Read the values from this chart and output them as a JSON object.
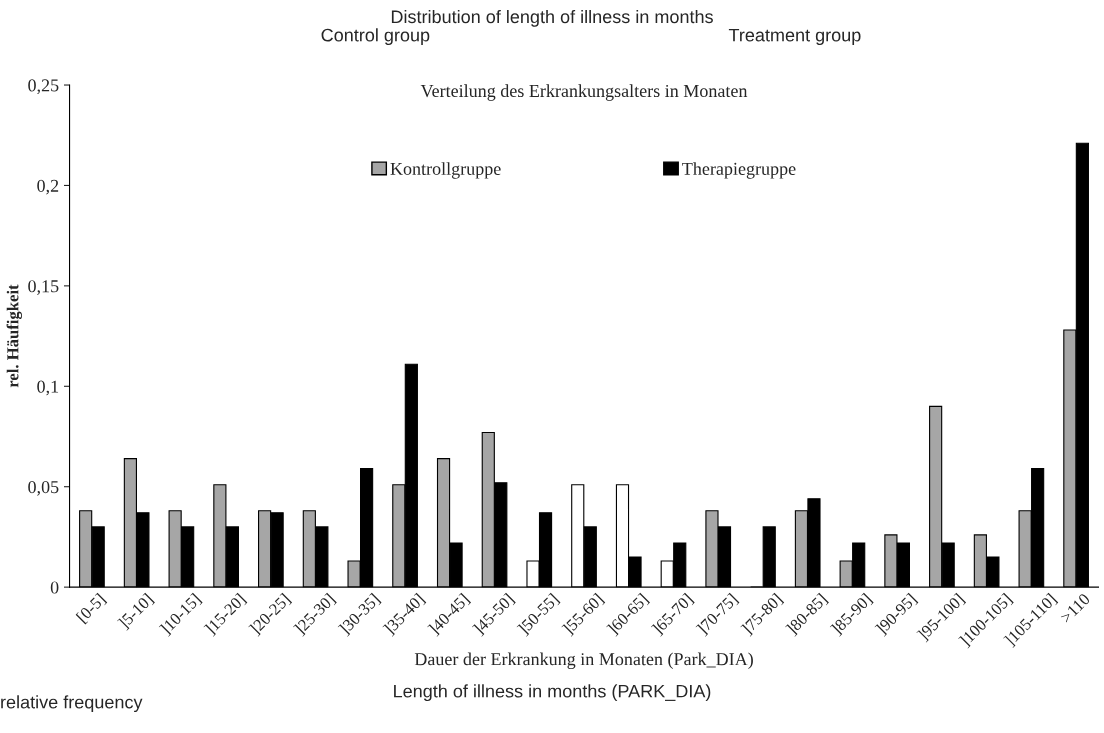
{
  "chart_data": {
    "type": "bar",
    "title": "Distribution of length of illness in months",
    "subtitle": "Verteilung des Erkrankungsalters in Monaten",
    "ylabel": "rel. Häufigkeit",
    "xlabel": "Dauer der Erkrankung in Monaten (Park_DIA)",
    "annotations": [
      "Control group",
      "Treatment group",
      "Length of illness in months (PARK_DIA)",
      "relative frequency"
    ],
    "categories": [
      "[0-5]",
      "]5-10]",
      "]10-15]",
      "]15-20]",
      "]20-25]",
      "]25-30]",
      "]30-35]",
      "]35-40]",
      "]40-45]",
      "]45-50]",
      "]50-55]",
      "]55-60]",
      "]60-65]",
      "]65-70]",
      "]70-75]",
      "]75-80]",
      "]80-85]",
      "]85-90]",
      "]90-95]",
      "]95-100]",
      "]100-105]",
      "]105-110]",
      ">110"
    ],
    "series": [
      {
        "name": "Kontrollgruppe",
        "color": "#a6a6a6",
        "colors": [
          "#a6a6a6",
          "#a6a6a6",
          "#a6a6a6",
          "#a6a6a6",
          "#a6a6a6",
          "#a6a6a6",
          "#a6a6a6",
          "#a6a6a6",
          "#a6a6a6",
          "#a6a6a6",
          "#ffffff",
          "#ffffff",
          "#ffffff",
          "#ffffff",
          "#a6a6a6",
          "#a6a6a6",
          "#a6a6a6",
          "#a6a6a6",
          "#a6a6a6",
          "#a6a6a6",
          "#a6a6a6",
          "#a6a6a6",
          "#a6a6a6"
        ],
        "values": [
          0.038,
          0.064,
          0.038,
          0.051,
          0.038,
          0.038,
          0.013,
          0.051,
          0.064,
          0.077,
          0.013,
          0.051,
          0.051,
          0.013,
          0.038,
          0,
          0.038,
          0.013,
          0.026,
          0.09,
          0.026,
          0.038,
          0.128
        ]
      },
      {
        "name": "Therapiegruppe",
        "color": "#000000",
        "values": [
          0.03,
          0.037,
          0.03,
          0.03,
          0.037,
          0.03,
          0.059,
          0.111,
          0.022,
          0.052,
          0.037,
          0.03,
          0.015,
          0.022,
          0.03,
          0.03,
          0.044,
          0.022,
          0.022,
          0.022,
          0.015,
          0.059,
          0.221
        ]
      }
    ],
    "ylim": [
      0,
      0.25
    ],
    "yticks": [
      0,
      {
        "value": 0.05,
        "label": "0,05"
      },
      {
        "value": 0.1,
        "label": "0,1"
      },
      {
        "value": 0.15,
        "label": "0,15"
      },
      {
        "value": 0.2,
        "label": "0,2"
      },
      {
        "value": 0.25,
        "label": "0,25"
      }
    ],
    "grid": false,
    "legend": "top"
  }
}
